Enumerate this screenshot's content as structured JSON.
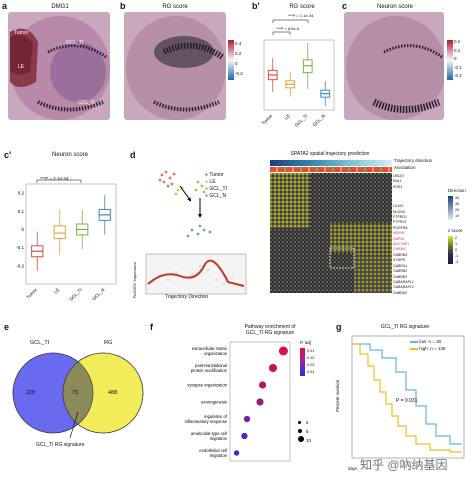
{
  "panels": {
    "a": {
      "label": "a",
      "title": "DMG1",
      "regions": [
        "Tumor",
        "LE",
        "GCL_TI",
        "GCL_N"
      ]
    },
    "b": {
      "label": "b",
      "title": "RG score"
    },
    "c": {
      "label": "c",
      "title": "Neuron score"
    },
    "b_prime": {
      "label": "b'",
      "title": "RG score",
      "sig": [
        "***P = 1.1e-34",
        "***P = 8.6e-6"
      ],
      "colorbar": [
        "0.4",
        "0.2",
        "0",
        "-0.2"
      ]
    },
    "c_colorbar": [
      "0.2",
      "0.1",
      "0",
      "-0.1",
      "-0.2"
    ],
    "c_prime": {
      "label": "c'",
      "title": "Neuron score",
      "sig": "***P = 2.1e-24",
      "yticks": [
        "0.2",
        "0.1",
        "0",
        "-0.1",
        "-0.2"
      ]
    },
    "d": {
      "label": "d",
      "title": "SPATA2 spatial trajectory prediction",
      "legend": [
        "Tumor",
        "LE",
        "GCL_TI",
        "GCL_N"
      ],
      "annot": [
        "Trajectory direction",
        "Annotation"
      ],
      "direction_title": "Direction",
      "direction_ticks": [
        "40",
        "30",
        "20",
        "10"
      ],
      "zscore_title": "z score",
      "zscore_ticks": [
        "2",
        "1",
        "0",
        "-1",
        "-2"
      ],
      "ylabel": "PAX6OC expression",
      "xlabel": "Trajectory Direction",
      "genes": [
        "UBC67",
        "RAL1",
        "EGR1",
        "OLIG2",
        "NLGN3",
        "PTPRD1",
        "PTPRZ1",
        "PDGFRA",
        "NRXN1",
        "GAP43",
        "ADCYAP1",
        "CHRM1",
        "GABRB3",
        "SYNPR",
        "GABRA1",
        "GABRB2",
        "GABRB2",
        "GABARAPL1",
        "GABARAPL2",
        "GABRA2"
      ]
    },
    "e": {
      "label": "e",
      "left": "GCL_TI",
      "right": "RG",
      "n_left": "228",
      "n_mid": "73",
      "n_right": "488",
      "caption": "GCL_TI RG signature"
    },
    "f": {
      "label": "f",
      "title": [
        "Pathway enrichment of",
        "GCL_TI RG signature"
      ],
      "terms": [
        "extracellular matrix organization",
        "post-translational protein modification",
        "synapse organization",
        "axonogenesis",
        "regulation of inflammatory response",
        "ameboidal-type cell migration",
        "endothelial cell migration"
      ],
      "padj_title": "P. adj",
      "padj_ticks": [
        "0.01",
        "0.02",
        "0.03",
        "0.04"
      ],
      "size_ticks": [
        "6",
        "8",
        "10"
      ]
    },
    "g": {
      "label": "g",
      "title": "GCL_TI RG signature",
      "legend": [
        "low: n = 30",
        "high: n = 136"
      ],
      "pval": "P = 0.031",
      "ylabel": "Percent survival",
      "xlabel": "days"
    }
  },
  "chart_data": [
    {
      "type": "box",
      "panel": "b'",
      "title": "RG score",
      "categories": [
        "Tumor",
        "LE",
        "GCL_TI",
        "GCL_N"
      ],
      "median": [
        0.3,
        0.22,
        0.38,
        0.14
      ],
      "q1": [
        0.26,
        0.19,
        0.32,
        0.11
      ],
      "q3": [
        0.34,
        0.25,
        0.43,
        0.17
      ],
      "ylim": [
        0,
        0.6
      ],
      "colors": [
        "#e14b3b",
        "#e8a13a",
        "#7cb342",
        "#3b8bc2"
      ]
    },
    {
      "type": "box",
      "panel": "c'",
      "title": "Neuron score",
      "categories": [
        "Tumor",
        "LE",
        "GCL_TI",
        "GCL_N"
      ],
      "median": [
        -0.12,
        -0.02,
        0.0,
        0.08
      ],
      "q1": [
        -0.15,
        -0.05,
        -0.03,
        0.05
      ],
      "q3": [
        -0.09,
        0.02,
        0.03,
        0.11
      ],
      "ylim": [
        -0.3,
        0.25
      ],
      "colors": [
        "#e14b3b",
        "#e8a13a",
        "#7cb342",
        "#3b8bc2"
      ]
    },
    {
      "type": "venn",
      "panel": "e",
      "sets": [
        "GCL_TI",
        "RG"
      ],
      "values": [
        228,
        73,
        488
      ]
    },
    {
      "type": "scatter",
      "panel": "f",
      "title": "Pathway enrichment of GCL_TI RG signature",
      "categories": [
        "extracellular matrix organization",
        "post-translational protein modification",
        "synapse organization",
        "axonogenesis",
        "regulation of inflammatory response",
        "ameboidal-type cell migration",
        "endothelial cell migration"
      ],
      "x": [
        0.95,
        0.75,
        0.55,
        0.5,
        0.25,
        0.2,
        0.05
      ],
      "sizes": [
        10,
        9,
        8,
        8,
        7,
        7,
        6
      ],
      "padj": [
        0.005,
        0.008,
        0.015,
        0.02,
        0.03,
        0.04,
        0.045
      ]
    },
    {
      "type": "line",
      "panel": "g",
      "title": "GCL_TI RG signature",
      "series": [
        {
          "name": "low: n = 30",
          "color": "#64b5e8"
        },
        {
          "name": "high: n = 136",
          "color": "#e8c020"
        }
      ]
    }
  ]
}
